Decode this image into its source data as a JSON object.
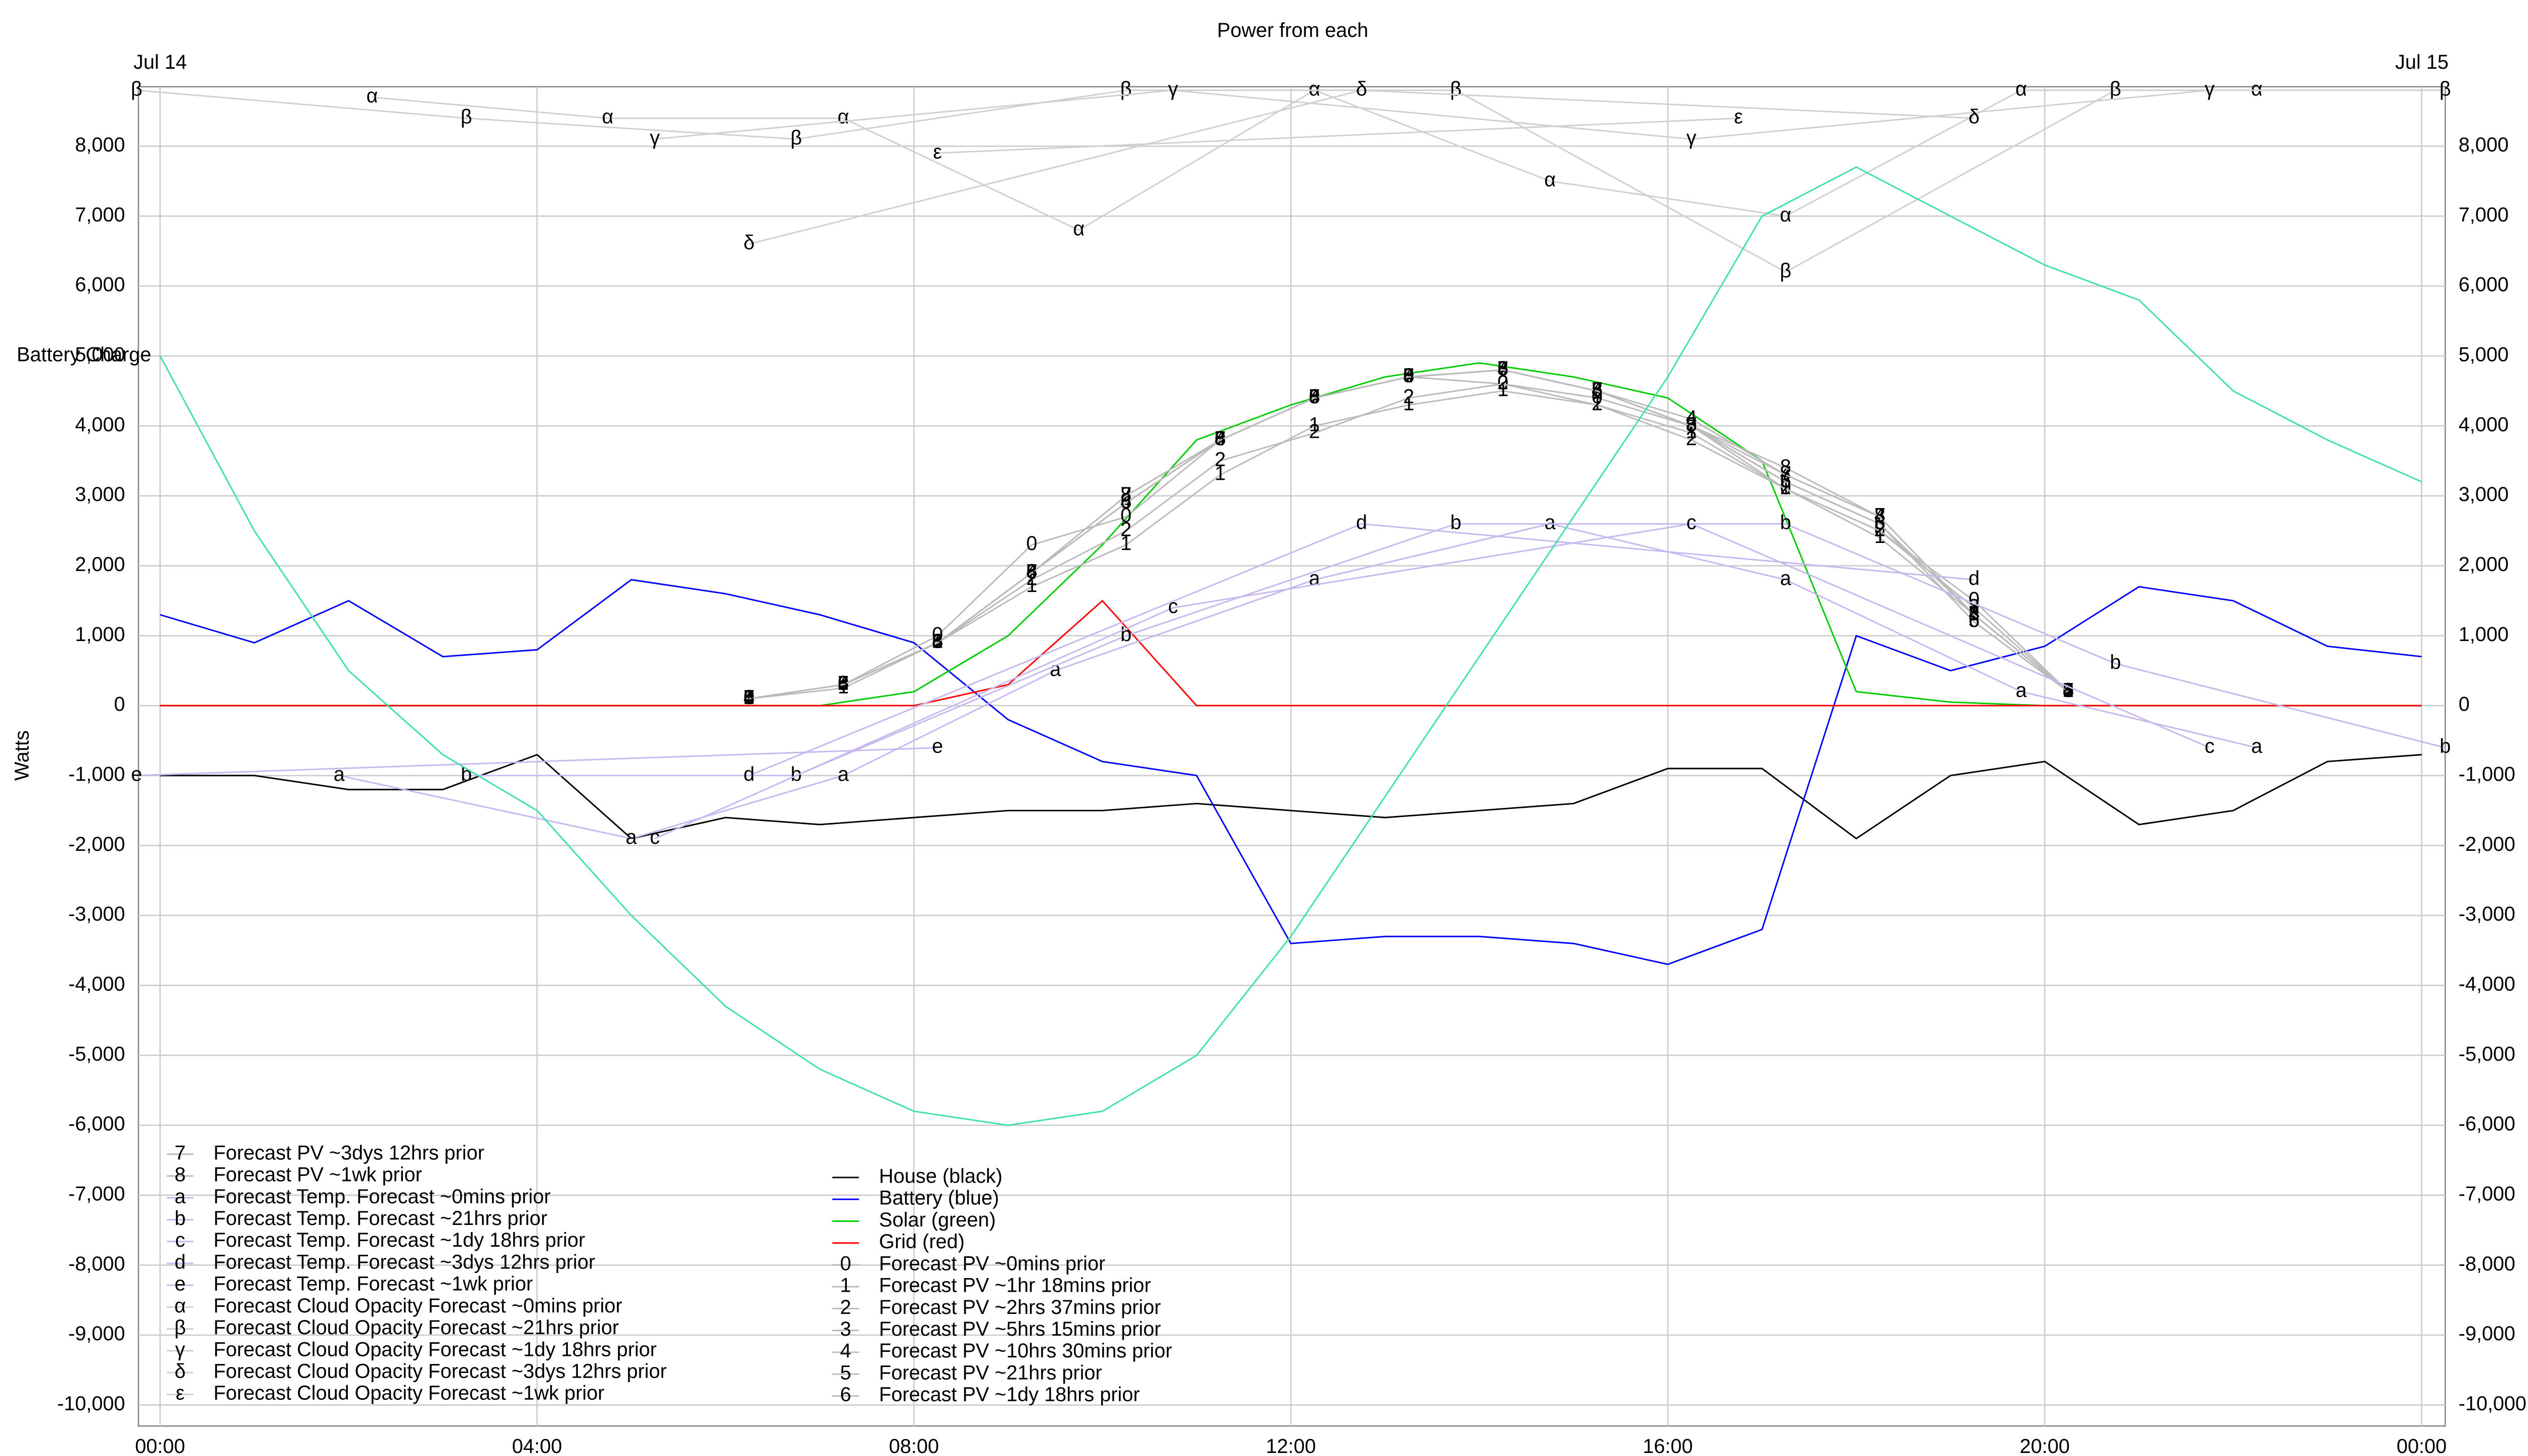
{
  "chart_data": {
    "type": "line",
    "title": "Power from each",
    "ylabel": "Watts",
    "annotations": [
      "Jul 14",
      "Jul 15"
    ],
    "grid": true,
    "xlim": [
      -0.23,
      24.25
    ],
    "xticks": [
      {
        "value": 0,
        "label": "00:00"
      },
      {
        "value": 4,
        "label": "04:00"
      },
      {
        "value": 8,
        "label": "08:00"
      },
      {
        "value": 12,
        "label": "12:00"
      },
      {
        "value": 16,
        "label": "16:00"
      },
      {
        "value": 20,
        "label": "20:00"
      },
      {
        "value": 24,
        "label": "00:00"
      }
    ],
    "ylim": [
      -10300,
      8850
    ],
    "yticks": [
      {
        "value": -10000,
        "label": "-10,000"
      },
      {
        "value": -9000,
        "label": "-9,000"
      },
      {
        "value": -8000,
        "label": "-8,000"
      },
      {
        "value": -7000,
        "label": "-7,000"
      },
      {
        "value": -6000,
        "label": "-6,000"
      },
      {
        "value": -5000,
        "label": "-5,000"
      },
      {
        "value": -4000,
        "label": "-4,000"
      },
      {
        "value": -3000,
        "label": "-3,000"
      },
      {
        "value": -2000,
        "label": "-2,000"
      },
      {
        "value": -1000,
        "label": "-1,000"
      },
      0,
      {
        "value": 1000,
        "label": "1,000"
      },
      {
        "value": 2000,
        "label": "2,000"
      },
      {
        "value": 3000,
        "label": "3,000"
      },
      {
        "value": 4000,
        "label": "4,000"
      },
      {
        "value": 5000,
        "label": "5,000"
      },
      {
        "value": 6000,
        "label": "6,000"
      },
      {
        "value": 7000,
        "label": "7,000"
      },
      {
        "value": 8000,
        "label": "8,000"
      }
    ],
    "x": [
      0,
      1,
      2,
      3,
      4,
      5,
      6,
      7,
      8,
      9,
      10,
      11,
      12,
      13,
      14,
      15,
      16,
      17,
      18,
      19,
      20,
      21,
      22,
      23,
      24
    ],
    "series": [
      {
        "name": "House (black)",
        "color": "#000000",
        "values": [
          -1000,
          -1000,
          -1200,
          -1200,
          -700,
          -1900,
          -1600,
          -1700,
          -1600,
          -1500,
          -1500,
          -1400,
          -1500,
          -1600,
          -1500,
          -1400,
          -900,
          -900,
          -1900,
          -1000,
          -800,
          -1700,
          -1500,
          -800,
          -700
        ]
      },
      {
        "name": "Battery (blue)",
        "color": "#0000ff",
        "values": [
          1300,
          900,
          1500,
          700,
          800,
          1800,
          1600,
          1300,
          900,
          -200,
          -800,
          -1000,
          -3400,
          -3300,
          -3300,
          -3400,
          -3700,
          -3200,
          1000,
          500,
          850,
          1700,
          1500,
          850,
          700
        ]
      },
      {
        "name": "Solar (green)",
        "color": "#00cc00",
        "values": [
          0,
          0,
          0,
          0,
          0,
          0,
          0,
          0,
          200,
          1000,
          2300,
          3800,
          4300,
          4700,
          4900,
          4700,
          4400,
          3500,
          200,
          50,
          0,
          0,
          0,
          0,
          0
        ]
      },
      {
        "name": "Grid (red)",
        "color": "#ff0000",
        "values": [
          0,
          0,
          0,
          0,
          0,
          0,
          0,
          0,
          0,
          300,
          1500,
          0,
          0,
          0,
          0,
          0,
          0,
          0,
          0,
          0,
          0,
          0,
          0,
          0,
          0
        ]
      },
      {
        "name": "Forecast PV ~0mins prior",
        "symbol": "0",
        "color": "#bbbbbb",
        "x": [
          6.25,
          7.25,
          8.25,
          9.25,
          10.25,
          11.25,
          12.25,
          13.25,
          14.25,
          15.25,
          16.25,
          17.25,
          18.25,
          19.25,
          20.25
        ],
        "values": [
          100,
          300,
          1000,
          2300,
          2700,
          3800,
          4400,
          4700,
          4600,
          4400,
          4000,
          3100,
          2500,
          1500,
          200
        ]
      },
      {
        "name": "Forecast PV ~1hr 18mins prior",
        "symbol": "1",
        "color": "#bbbbbb",
        "x": [
          6.25,
          7.25,
          8.25,
          9.25,
          10.25,
          11.25,
          12.25,
          13.25,
          14.25,
          15.25,
          16.25,
          17.25,
          18.25,
          19.25,
          20.25
        ],
        "values": [
          100,
          250,
          900,
          1700,
          2300,
          3300,
          4000,
          4300,
          4500,
          4300,
          3900,
          3100,
          2400,
          1300,
          200
        ]
      },
      {
        "name": "Forecast PV ~2hrs 37mins prior",
        "symbol": "2",
        "color": "#bbbbbb",
        "x": [
          6.25,
          7.25,
          8.25,
          9.25,
          10.25,
          11.25,
          12.25,
          13.25,
          14.25,
          15.25,
          16.25,
          17.25,
          18.25,
          19.25,
          20.25
        ],
        "values": [
          100,
          300,
          900,
          1800,
          2500,
          3500,
          3900,
          4400,
          4600,
          4300,
          3800,
          3100,
          2500,
          1400,
          200
        ]
      },
      {
        "name": "Forecast PV ~5hrs 15mins prior",
        "symbol": "3",
        "color": "#bbbbbb",
        "x": [
          6.25,
          7.25,
          8.25,
          9.25,
          10.25,
          11.25,
          12.25,
          13.25,
          14.25,
          15.25,
          16.25,
          17.25,
          18.25,
          19.25,
          20.25
        ],
        "values": [
          100,
          300,
          900,
          1900,
          2900,
          3800,
          4400,
          4700,
          4800,
          4500,
          4000,
          3200,
          2600,
          1300,
          200
        ]
      },
      {
        "name": "Forecast PV ~10hrs 30mins prior",
        "symbol": "4",
        "color": "#bbbbbb",
        "x": [
          6.25,
          7.25,
          8.25,
          9.25,
          10.25,
          11.25,
          12.25,
          13.25,
          14.25,
          15.25,
          16.25,
          17.25,
          18.25,
          19.25,
          20.25
        ],
        "values": [
          100,
          300,
          900,
          1900,
          2900,
          3800,
          4400,
          4700,
          4800,
          4500,
          4100,
          3300,
          2700,
          1300,
          200
        ]
      },
      {
        "name": "Forecast PV ~21hrs prior",
        "symbol": "5",
        "color": "#bbbbbb",
        "x": [
          6.25,
          7.25,
          8.25,
          9.25,
          10.25,
          11.25,
          12.25,
          13.25,
          14.25,
          15.25,
          16.25,
          17.25,
          18.25,
          19.25,
          20.25
        ],
        "values": [
          100,
          300,
          900,
          1900,
          2900,
          3800,
          4400,
          4700,
          4800,
          4500,
          4000,
          3200,
          2600,
          1200,
          200
        ]
      },
      {
        "name": "Forecast PV ~1dy 18hrs prior",
        "symbol": "6",
        "color": "#bbbbbb",
        "x": [
          6.25,
          7.25,
          8.25,
          9.25,
          10.25,
          11.25,
          12.25,
          13.25,
          14.25,
          15.25,
          16.25,
          17.25,
          18.25,
          19.25,
          20.25
        ],
        "values": [
          100,
          300,
          900,
          1900,
          2900,
          3800,
          4400,
          4700,
          4800,
          4500,
          4000,
          3200,
          2600,
          1200,
          200
        ]
      },
      {
        "name": "Forecast PV ~3dys 12hrs prior",
        "symbol": "7",
        "color": "#bbbbbb",
        "x": [
          6.25,
          7.25,
          8.25,
          9.25,
          10.25,
          11.25,
          12.25,
          13.25,
          14.25,
          15.25,
          16.25,
          17.25,
          18.25,
          19.25,
          20.25
        ],
        "values": [
          100,
          300,
          900,
          1900,
          3000,
          3800,
          4400,
          4700,
          4800,
          4500,
          4000,
          3300,
          2700,
          1300,
          200
        ]
      },
      {
        "name": "Forecast PV ~1wk prior",
        "symbol": "8",
        "color": "#bbbbbb",
        "x": [
          6.25,
          7.25,
          8.25,
          9.25,
          10.25,
          11.25,
          12.25,
          13.25,
          14.25,
          15.25,
          16.25,
          17.25,
          18.25,
          19.25,
          20.25
        ],
        "values": [
          100,
          300,
          900,
          1900,
          3000,
          3800,
          4400,
          4700,
          4800,
          4500,
          4000,
          3400,
          2700,
          1300,
          200
        ]
      },
      {
        "name": "Forecast Temp. Forecast ~0mins prior",
        "symbol": "a",
        "color": "#c8b8f0",
        "x": [
          1.9,
          5,
          7.25,
          9.5,
          12.25,
          14.75,
          17.25,
          19.75,
          22.25
        ],
        "values": [
          -1000,
          -1900,
          -1000,
          500,
          1800,
          2600,
          1800,
          200,
          -600
        ]
      },
      {
        "name": "Forecast Temp. Forecast ~21hrs prior",
        "symbol": "b",
        "color": "#c8b8f0",
        "x": [
          3.25,
          6.75,
          10.25,
          13.75,
          17.25,
          20.75,
          24.25
        ],
        "values": [
          -1000,
          -1000,
          1000,
          2600,
          2600,
          600,
          -600
        ]
      },
      {
        "name": "Forecast Temp. Forecast ~1dy 18hrs prior",
        "symbol": "c",
        "color": "#c8b8f0",
        "x": [
          5.25,
          10.75,
          16.25,
          21.75
        ],
        "values": [
          -1900,
          1400,
          2600,
          -600
        ]
      },
      {
        "name": "Forecast Temp. Forecast ~3dys 12hrs prior",
        "symbol": "d",
        "color": "#c8b8f0",
        "x": [
          6.25,
          12.75,
          19.25
        ],
        "values": [
          -1000,
          2600,
          1800
        ]
      },
      {
        "name": "Forecast Temp. Forecast ~1wk prior",
        "symbol": "e",
        "color": "#c8b8f0",
        "x": [
          -0.25,
          8.25
        ],
        "values": [
          -1000,
          -600
        ]
      },
      {
        "name": "Forecast Cloud Opacity Forecast ~0mins prior",
        "symbol": "α",
        "color": "#d0d0d0",
        "x": [
          2.25,
          4.75,
          7.25,
          9.75,
          12.25,
          14.75,
          17.25,
          19.75,
          22.25
        ],
        "values": [
          8700,
          8400,
          8400,
          6800,
          8800,
          7500,
          7000,
          8800,
          8800
        ]
      },
      {
        "name": "Forecast Cloud Opacity Forecast ~21hrs prior",
        "symbol": "β",
        "color": "#d0d0d0",
        "x": [
          -0.25,
          3.25,
          6.75,
          10.25,
          13.75,
          17.25,
          20.75,
          24.25
        ],
        "values": [
          8800,
          8400,
          8100,
          8800,
          8800,
          6200,
          8800,
          8800
        ]
      },
      {
        "name": "Forecast Cloud Opacity Forecast ~1dy 18hrs prior",
        "symbol": "γ",
        "color": "#d0d0d0",
        "x": [
          5.25,
          10.75,
          16.25,
          21.75
        ],
        "values": [
          8100,
          8800,
          8100,
          8800
        ]
      },
      {
        "name": "Forecast Cloud Opacity Forecast ~3dys 12hrs prior",
        "symbol": "δ",
        "color": "#d0d0d0",
        "x": [
          6.25,
          12.75,
          19.25
        ],
        "values": [
          6600,
          8800,
          8400
        ]
      },
      {
        "name": "Forecast Cloud Opacity Forecast ~1wk prior",
        "symbol": "ε",
        "color": "#d0d0d0",
        "x": [
          8.25,
          16.75
        ],
        "values": [
          7900,
          8400
        ]
      },
      {
        "name": "Battery Charge",
        "color": "#40e0b0",
        "values": [
          5000,
          2500,
          500,
          -700,
          -1500,
          -3000,
          -4300,
          -5200,
          -5800,
          -6000,
          -5800,
          -5000,
          -3300,
          -1300,
          700,
          2700,
          4700,
          7000,
          7700,
          7000,
          6300,
          5800,
          4500,
          3800,
          3200
        ]
      }
    ]
  }
}
